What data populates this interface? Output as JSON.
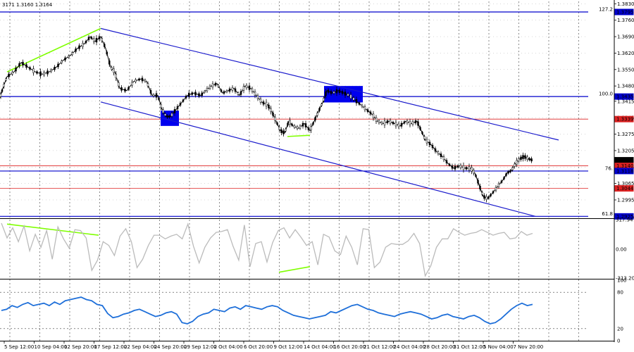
{
  "header": {
    "ohlc_text": "3171 1.3160 1.3164"
  },
  "colors": {
    "background": "#ffffff",
    "grid": "#3c3c3c",
    "level_blue": "#0000cc",
    "level_red": "#dd2222",
    "channel": "#1a1acc",
    "green": "#7fff00",
    "cci": "#bbbbbb",
    "rsi": "#1e6fd9",
    "price_line": "#000000",
    "box": "#0000ee"
  },
  "chart_data": [
    {
      "type": "line",
      "name": "GBP/USD 4H price",
      "y_ticks": [
        "1.3830",
        "1.3760",
        "1.3690",
        "1.3620",
        "1.3550",
        "1.3480",
        "1.3415",
        "1.3345",
        "1.3275",
        "1.3205",
        "1.3135",
        "1.3065",
        "1.2995",
        "1.2925"
      ],
      "ylim": [
        1.292,
        1.384
      ],
      "x_labels": [
        "5 Sep 12:00",
        "10 Sep 04:00",
        "12 Sep 20:00",
        "17 Sep 12:00",
        "22 Sep 04:00",
        "24 Sep 20:00",
        "29 Sep 12:00",
        "2 Oct 04:00",
        "6 Oct 20:00",
        "9 Oct 12:00",
        "14 Oct 04:00",
        "16 Oct 20:00",
        "21 Oct 12:00",
        "24 Oct 04:00",
        "28 Oct 20:00",
        "31 Oct 12:00",
        "5 Nov 04:00",
        "7 Nov 20:00"
      ],
      "close_points": [
        [
          0,
          1.343
        ],
        [
          4,
          1.347
        ],
        [
          10,
          1.352
        ],
        [
          20,
          1.354
        ],
        [
          30,
          1.358
        ],
        [
          40,
          1.356
        ],
        [
          50,
          1.354
        ],
        [
          60,
          1.353
        ],
        [
          70,
          1.354
        ],
        [
          80,
          1.356
        ],
        [
          90,
          1.359
        ],
        [
          100,
          1.361
        ],
        [
          110,
          1.364
        ],
        [
          120,
          1.366
        ],
        [
          128,
          1.369
        ],
        [
          135,
          1.367
        ],
        [
          143,
          1.369
        ],
        [
          150,
          1.364
        ],
        [
          157,
          1.356
        ],
        [
          163,
          1.354
        ],
        [
          170,
          1.347
        ],
        [
          180,
          1.346
        ],
        [
          190,
          1.35
        ],
        [
          200,
          1.351
        ],
        [
          208,
          1.35
        ],
        [
          216,
          1.344
        ],
        [
          224,
          1.344
        ],
        [
          230,
          1.338
        ],
        [
          236,
          1.335
        ],
        [
          242,
          1.335
        ],
        [
          250,
          1.338
        ],
        [
          258,
          1.341
        ],
        [
          266,
          1.344
        ],
        [
          275,
          1.345
        ],
        [
          285,
          1.344
        ],
        [
          292,
          1.346
        ],
        [
          300,
          1.348
        ],
        [
          308,
          1.349
        ],
        [
          316,
          1.345
        ],
        [
          324,
          1.346
        ],
        [
          332,
          1.347
        ],
        [
          340,
          1.344
        ],
        [
          348,
          1.348
        ],
        [
          356,
          1.347
        ],
        [
          364,
          1.344
        ],
        [
          372,
          1.341
        ],
        [
          380,
          1.34
        ],
        [
          386,
          1.337
        ],
        [
          392,
          1.333
        ],
        [
          398,
          1.329
        ],
        [
          404,
          1.328
        ],
        [
          410,
          1.333
        ],
        [
          416,
          1.331
        ],
        [
          424,
          1.33
        ],
        [
          432,
          1.332
        ],
        [
          440,
          1.329
        ],
        [
          446,
          1.333
        ],
        [
          452,
          1.337
        ],
        [
          458,
          1.341
        ],
        [
          464,
          1.346
        ],
        [
          472,
          1.345
        ],
        [
          480,
          1.346
        ],
        [
          488,
          1.345
        ],
        [
          496,
          1.344
        ],
        [
          504,
          1.342
        ],
        [
          512,
          1.34
        ],
        [
          520,
          1.338
        ],
        [
          528,
          1.336
        ],
        [
          536,
          1.333
        ],
        [
          544,
          1.332
        ],
        [
          552,
          1.333
        ],
        [
          560,
          1.332
        ],
        [
          568,
          1.331
        ],
        [
          576,
          1.333
        ],
        [
          584,
          1.332
        ],
        [
          592,
          1.333
        ],
        [
          598,
          1.329
        ],
        [
          604,
          1.325
        ],
        [
          612,
          1.323
        ],
        [
          620,
          1.32
        ],
        [
          628,
          1.318
        ],
        [
          636,
          1.315
        ],
        [
          644,
          1.313
        ],
        [
          652,
          1.314
        ],
        [
          660,
          1.313
        ],
        [
          668,
          1.313
        ],
        [
          674,
          1.311
        ],
        [
          680,
          1.306
        ],
        [
          686,
          1.301
        ],
        [
          692,
          1.3
        ],
        [
          698,
          1.302
        ],
        [
          706,
          1.305
        ],
        [
          714,
          1.308
        ],
        [
          720,
          1.311
        ],
        [
          726,
          1.312
        ],
        [
          732,
          1.315
        ],
        [
          738,
          1.317
        ],
        [
          744,
          1.318
        ],
        [
          750,
          1.317
        ],
        [
          756,
          1.3164
        ]
      ],
      "levels": [
        {
          "price": 1.3795,
          "label": "127.2",
          "color": "blue"
        },
        {
          "price": 1.3435,
          "label": "100.0",
          "color": "blue"
        },
        {
          "price": 1.3339,
          "label": "",
          "color": "red"
        },
        {
          "price": 1.314,
          "label": "",
          "color": "red"
        },
        {
          "price": 1.3118,
          "label": "76.",
          "color": "blue"
        },
        {
          "price": 1.3044,
          "label": "",
          "color": "red"
        },
        {
          "price": 1.2925,
          "label": "61.8",
          "color": "blue"
        }
      ],
      "price_tags": [
        {
          "text": "1.3795",
          "style": "blue"
        },
        {
          "text": "1.3435",
          "style": "blue"
        },
        {
          "text": "1.3339",
          "style": "red"
        },
        {
          "text": "1.3164",
          "style": "black"
        },
        {
          "text": "1.3140",
          "style": "red"
        },
        {
          "text": "1.3118",
          "style": "blue"
        },
        {
          "text": "1.3044",
          "style": "red"
        },
        {
          "text": "1.2925",
          "style": "blue"
        }
      ],
      "channel": {
        "upper": [
          [
            143,
            1.3725
          ],
          [
            793,
            1.325
          ]
        ],
        "lower": [
          [
            143,
            1.3412
          ],
          [
            760,
            1.2925
          ]
        ]
      },
      "divergence_lines": [
        [
          [
            10,
            1.354
          ],
          [
            143,
            1.3725
          ]
        ],
        [
          [
            408,
            1.3265
          ],
          [
            440,
            1.327
          ]
        ]
      ],
      "boxes": [
        {
          "x0": 228,
          "x1": 254,
          "p0": 1.3375,
          "p1": 1.331
        },
        {
          "x0": 460,
          "x1": 515,
          "p0": 1.348,
          "p1": 1.341
        }
      ]
    },
    {
      "type": "line",
      "name": "CCI",
      "y_ticks": [
        "317.9471",
        "0.00",
        "-313.204"
      ],
      "ylim": [
        -313.204,
        317.9471
      ],
      "values": [
        280,
        120,
        230,
        80,
        250,
        -20,
        160,
        20,
        200,
        -110,
        240,
        110,
        10,
        210,
        200,
        120,
        -230,
        -120,
        80,
        40,
        -70,
        140,
        220,
        80,
        -200,
        -110,
        40,
        150,
        150,
        110,
        140,
        160,
        110,
        270,
        30,
        -150,
        20,
        120,
        180,
        190,
        210,
        30,
        -120,
        260,
        -190,
        60,
        80,
        -140,
        70,
        200,
        230,
        120,
        210,
        130,
        40,
        80,
        -170,
        160,
        130,
        -20,
        -60,
        140,
        20,
        -170,
        220,
        210,
        -200,
        -140,
        20,
        60,
        50,
        50,
        90,
        170,
        60,
        -290,
        -180,
        20,
        110,
        110,
        220,
        180,
        150,
        170,
        180,
        210,
        180,
        150,
        170,
        180,
        110,
        120,
        190,
        150,
        170
      ]
    },
    {
      "type": "line",
      "name": "RSI",
      "y_ticks": [
        "100",
        "80",
        "20",
        "0"
      ],
      "ylim": [
        0,
        100
      ],
      "values": [
        50,
        52,
        58,
        55,
        60,
        63,
        58,
        60,
        62,
        58,
        64,
        60,
        66,
        68,
        70,
        72,
        68,
        66,
        60,
        58,
        45,
        38,
        40,
        44,
        46,
        50,
        52,
        48,
        44,
        40,
        42,
        46,
        48,
        44,
        30,
        28,
        32,
        40,
        44,
        46,
        52,
        50,
        48,
        54,
        56,
        52,
        58,
        56,
        54,
        52,
        56,
        58,
        56,
        50,
        46,
        42,
        40,
        38,
        36,
        38,
        40,
        42,
        48,
        46,
        50,
        54,
        58,
        60,
        56,
        52,
        50,
        46,
        44,
        42,
        40,
        44,
        46,
        48,
        46,
        44,
        40,
        36,
        38,
        42,
        44,
        40,
        38,
        36,
        40,
        42,
        38,
        32,
        28,
        30,
        36,
        44,
        52,
        58,
        62,
        58,
        60
      ]
    }
  ]
}
